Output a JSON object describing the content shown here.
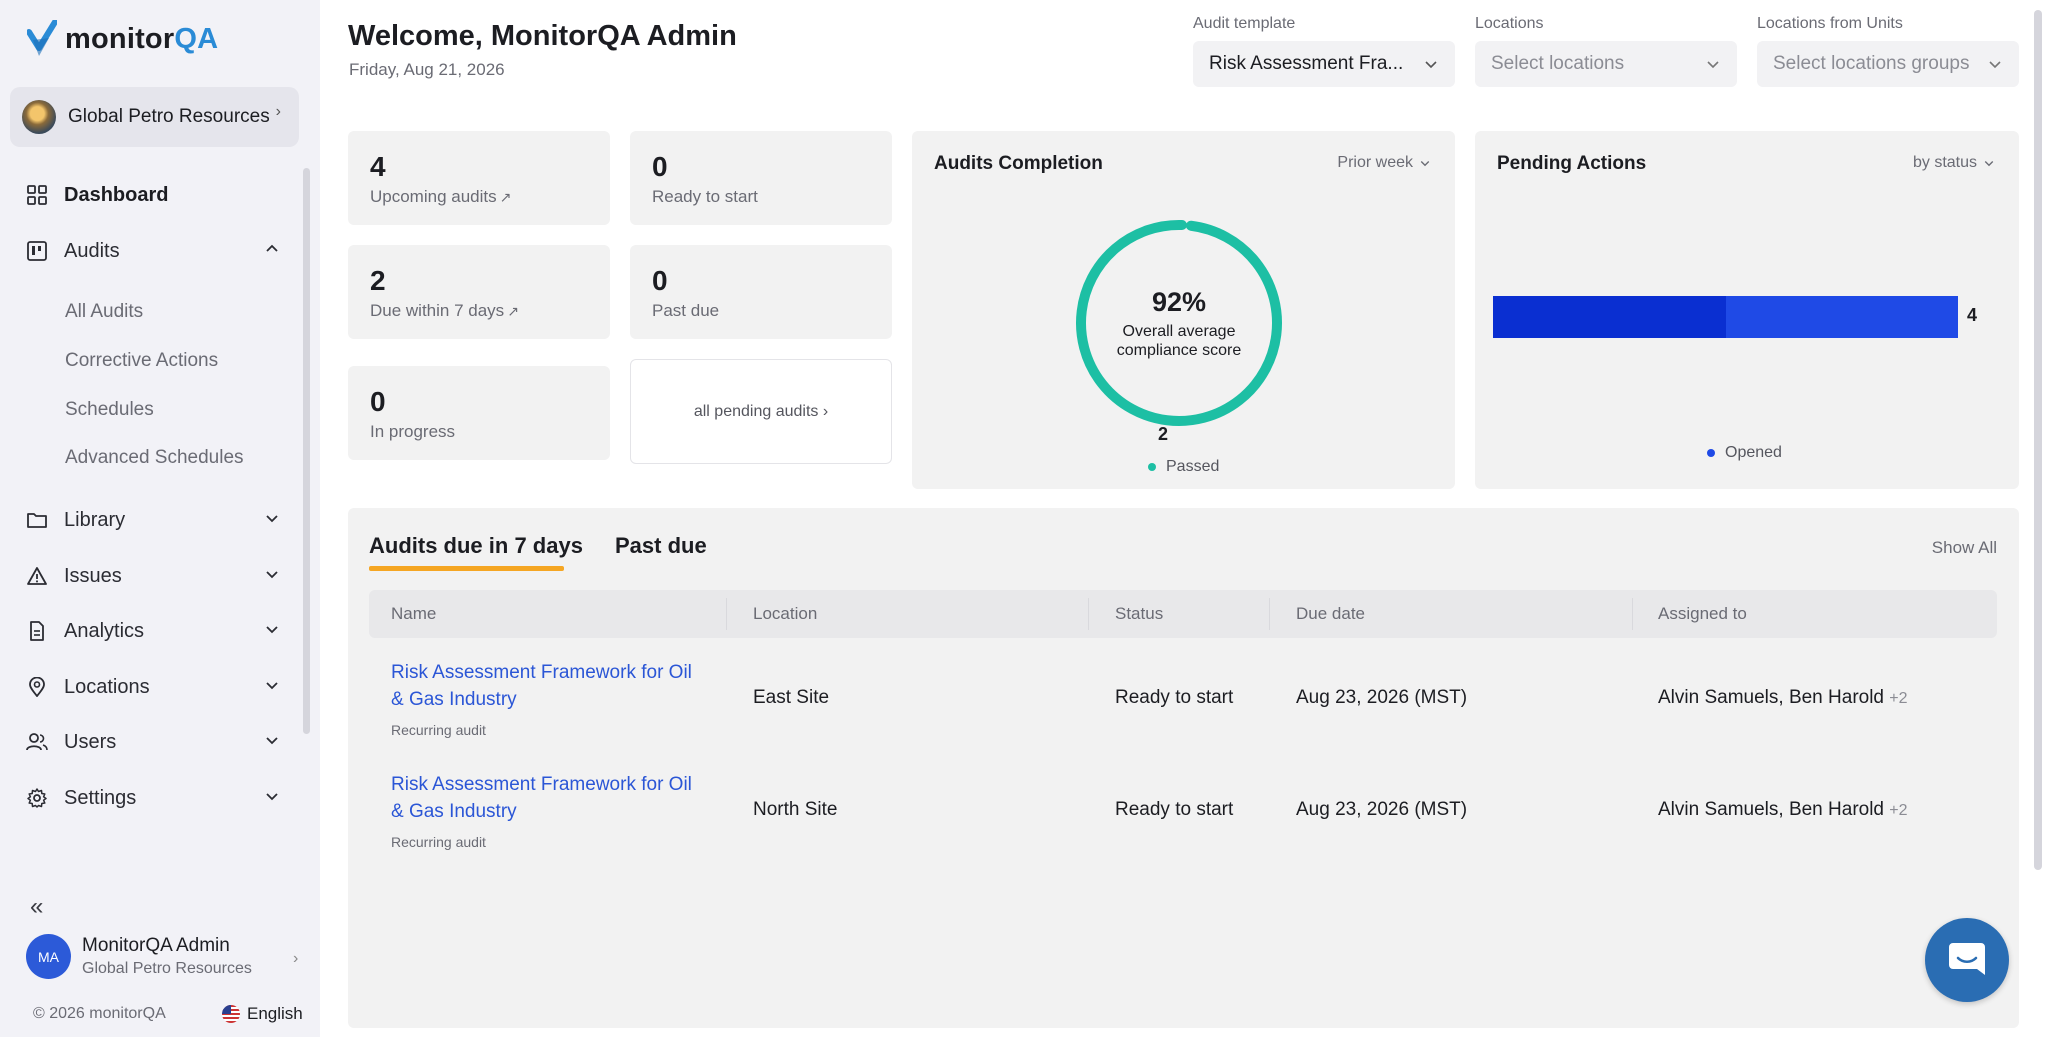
{
  "brand": {
    "name_part1": "monitor",
    "name_part2": "QA"
  },
  "organization": {
    "name": "Global Petro Resources"
  },
  "nav": {
    "dashboard": "Dashboard",
    "audits": "Audits",
    "audits_sub": [
      "All Audits",
      "Corrective Actions",
      "Schedules",
      "Advanced Schedules"
    ],
    "library": "Library",
    "issues": "Issues",
    "analytics": "Analytics",
    "locations": "Locations",
    "users": "Users",
    "settings": "Settings"
  },
  "user": {
    "initials": "MA",
    "name": "MonitorQA Admin",
    "org": "Global Petro Resources"
  },
  "footer": {
    "copyright": "© 2026 monitorQA",
    "language": "English"
  },
  "header": {
    "welcome": "Welcome, MonitorQA Admin",
    "date": "Friday, Aug 21, 2026"
  },
  "filters": {
    "audit_template": {
      "label": "Audit template",
      "value": "Risk Assessment Fra..."
    },
    "locations": {
      "label": "Locations",
      "placeholder": "Select locations"
    },
    "location_groups": {
      "label": "Locations from Units",
      "placeholder": "Select locations groups"
    }
  },
  "stats": {
    "upcoming": {
      "value": "4",
      "label": "Upcoming audits"
    },
    "ready": {
      "value": "0",
      "label": "Ready to start"
    },
    "due7": {
      "value": "2",
      "label": "Due within 7 days"
    },
    "past_due": {
      "value": "0",
      "label": "Past due"
    },
    "in_progress": {
      "value": "0",
      "label": "In progress"
    },
    "all_pending_link": "all pending audits ›"
  },
  "completion": {
    "title": "Audits Completion",
    "period": "Prior week",
    "percent": "92%",
    "subtitle_line1": "Overall average",
    "subtitle_line2": "compliance score",
    "count": "2",
    "legend": "Passed",
    "color": "#1dbfa4"
  },
  "pending_actions": {
    "title": "Pending Actions",
    "group": "by status",
    "legend": "Opened",
    "color_dark": "#0a2fd1",
    "color_light": "#1f4ae6"
  },
  "chart_data": [
    {
      "type": "pie",
      "title": "Audits Completion",
      "categories": [
        "Passed"
      ],
      "values": [
        2
      ],
      "center_label": "92%"
    },
    {
      "type": "bar",
      "title": "Pending Actions",
      "categories": [
        "Opened"
      ],
      "values": [
        4
      ]
    }
  ],
  "table": {
    "tabs": [
      "Audits due in 7 days",
      "Past due"
    ],
    "show_all": "Show All",
    "columns": [
      "Name",
      "Location",
      "Status",
      "Due date",
      "Assigned to"
    ],
    "rows": [
      {
        "name": "Risk Assessment Framework for Oil & Gas Industry",
        "type": "Recurring audit",
        "location": "East Site",
        "status": "Ready to start",
        "due": "Aug 23, 2026 (MST)",
        "assigned": "Alvin Samuels, Ben Harold",
        "more": "+2"
      },
      {
        "name": "Risk Assessment Framework for Oil & Gas Industry",
        "type": "Recurring audit",
        "location": "North Site",
        "status": "Ready to start",
        "due": "Aug 23, 2026 (MST)",
        "assigned": "Alvin Samuels, Ben Harold",
        "more": "+2"
      }
    ]
  }
}
